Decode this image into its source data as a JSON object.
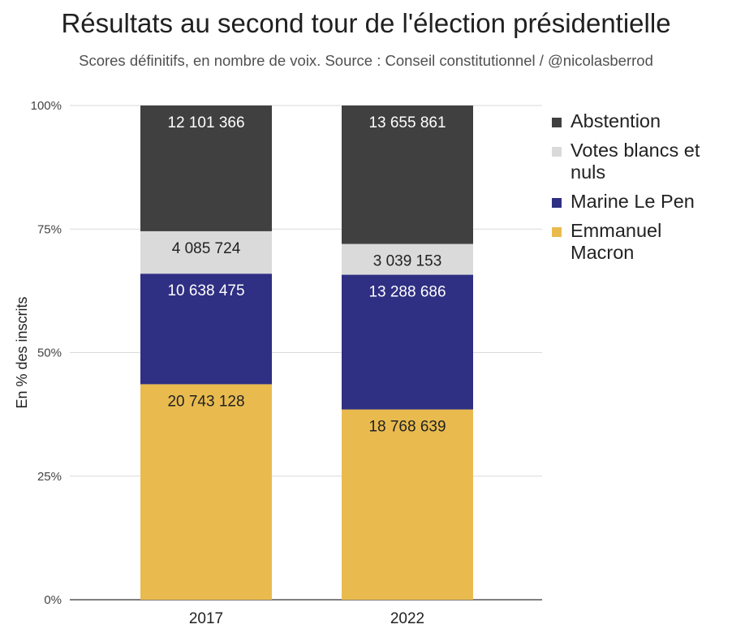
{
  "title": "Résultats au second tour de l'élection présidentielle",
  "subtitle": "Scores définitifs, en nombre de voix. Source : Conseil constitutionnel / @nicolasberrod",
  "chart_data": {
    "type": "bar",
    "stacked": true,
    "normalized": true,
    "title": "Résultats au second tour de l'élection présidentielle",
    "subtitle": "Scores définitifs, en nombre de voix. Source : Conseil constitutionnel / @nicolasberrod",
    "xlabel": "",
    "ylabel": "En % des inscrits",
    "ylim": [
      0,
      100
    ],
    "yticks": [
      "0%",
      "25%",
      "50%",
      "75%",
      "100%"
    ],
    "categories": [
      "2017",
      "2022"
    ],
    "series": [
      {
        "name": "Emmanuel Macron",
        "color": "#e9bb4f",
        "label_color": "#222222",
        "values": [
          20743128,
          18768639
        ],
        "labels": [
          "20 743 128",
          "18 768 639"
        ]
      },
      {
        "name": "Marine Le Pen",
        "color": "#2f2f83",
        "label_color": "#ffffff",
        "values": [
          10638475,
          13288686
        ],
        "labels": [
          "10 638 475",
          "13 288 686"
        ]
      },
      {
        "name": "Votes blancs et nuls",
        "color": "#dadada",
        "label_color": "#222222",
        "values": [
          4085724,
          3039153
        ],
        "labels": [
          "4 085 724",
          "3 039 153"
        ]
      },
      {
        "name": "Abstention",
        "color": "#404040",
        "label_color": "#ffffff",
        "values": [
          12101366,
          13655861
        ],
        "labels": [
          "12 101 366",
          "13 655 861"
        ]
      }
    ],
    "legend": {
      "position": "right",
      "items": [
        {
          "label": "Abstention",
          "color": "#404040"
        },
        {
          "label": "Votes blancs et nuls",
          "color": "#dadada"
        },
        {
          "label": "Marine Le Pen",
          "color": "#2f2f83"
        },
        {
          "label": "Emmanuel Macron",
          "color": "#e9bb4f"
        }
      ]
    }
  }
}
